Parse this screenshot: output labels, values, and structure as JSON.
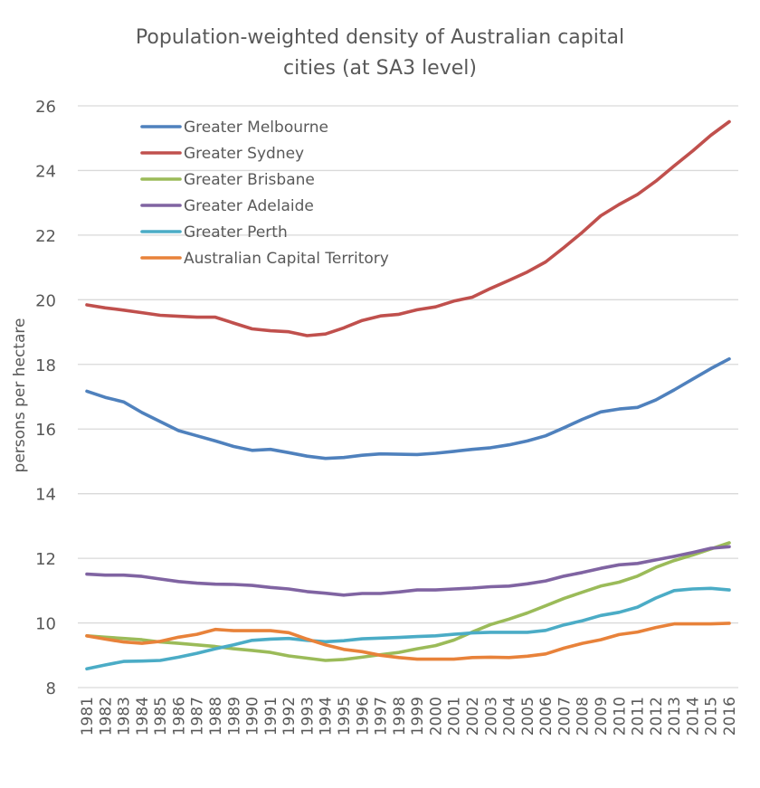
{
  "chart_data": {
    "type": "line",
    "title_lines": [
      "Population-weighted density of Australian capital",
      "cities (at SA3 level)"
    ],
    "xlabel": "",
    "ylabel": "persons per hectare",
    "ylim": [
      8,
      26
    ],
    "yticks": [
      8,
      10,
      12,
      14,
      16,
      18,
      20,
      22,
      24,
      26
    ],
    "grid": true,
    "legend_position": "top-left",
    "x": [
      "1981",
      "1982",
      "1983",
      "1984",
      "1985",
      "1986",
      "1987",
      "1988",
      "1989",
      "1990",
      "1991",
      "1992",
      "1993",
      "1994",
      "1995",
      "1996",
      "1997",
      "1998",
      "1999",
      "2000",
      "2001",
      "2002",
      "2003",
      "2004",
      "2005",
      "2006",
      "2007",
      "2008",
      "2009",
      "2010",
      "2011",
      "2012",
      "2013",
      "2014",
      "2015",
      "2016"
    ],
    "series": [
      {
        "name": "Greater Melbourne",
        "color": "#4F81BD",
        "values": [
          17.17,
          16.98,
          16.84,
          16.51,
          16.23,
          15.95,
          15.79,
          15.63,
          15.46,
          15.34,
          15.37,
          15.27,
          15.16,
          15.09,
          15.12,
          15.19,
          15.23,
          15.22,
          15.21,
          15.25,
          15.31,
          15.37,
          15.42,
          15.51,
          15.63,
          15.79,
          16.04,
          16.3,
          16.53,
          16.62,
          16.67,
          16.9,
          17.21,
          17.54,
          17.87,
          18.17
        ]
      },
      {
        "name": "Greater Sydney",
        "color": "#C0504D",
        "values": [
          19.84,
          19.75,
          19.68,
          19.6,
          19.52,
          19.49,
          19.46,
          19.46,
          19.28,
          19.1,
          19.04,
          19.01,
          18.89,
          18.94,
          19.13,
          19.36,
          19.5,
          19.55,
          19.69,
          19.78,
          19.96,
          20.08,
          20.35,
          20.6,
          20.86,
          21.17,
          21.62,
          22.09,
          22.6,
          22.95,
          23.26,
          23.67,
          24.14,
          24.6,
          25.09,
          25.51
        ]
      },
      {
        "name": "Greater Brisbane",
        "color": "#9BBB59",
        "values": [
          9.6,
          9.56,
          9.52,
          9.48,
          9.41,
          9.37,
          9.32,
          9.27,
          9.2,
          9.15,
          9.09,
          8.98,
          8.91,
          8.84,
          8.87,
          8.94,
          9.02,
          9.09,
          9.2,
          9.3,
          9.47,
          9.72,
          9.95,
          10.12,
          10.31,
          10.53,
          10.76,
          10.95,
          11.14,
          11.26,
          11.45,
          11.72,
          11.93,
          12.1,
          12.29,
          12.48
        ]
      },
      {
        "name": "Greater Adelaide",
        "color": "#8064A2",
        "values": [
          11.51,
          11.48,
          11.48,
          11.44,
          11.36,
          11.28,
          11.23,
          11.2,
          11.19,
          11.16,
          11.1,
          11.05,
          10.97,
          10.92,
          10.86,
          10.91,
          10.91,
          10.96,
          11.02,
          11.02,
          11.05,
          11.08,
          11.12,
          11.14,
          11.21,
          11.3,
          11.45,
          11.56,
          11.69,
          11.8,
          11.84,
          11.95,
          12.06,
          12.18,
          12.31,
          12.36
        ]
      },
      {
        "name": "Greater Perth",
        "color": "#4BACC6",
        "values": [
          8.58,
          8.7,
          8.81,
          8.82,
          8.84,
          8.94,
          9.06,
          9.2,
          9.32,
          9.46,
          9.5,
          9.52,
          9.46,
          9.42,
          9.45,
          9.51,
          9.53,
          9.55,
          9.58,
          9.6,
          9.65,
          9.69,
          9.71,
          9.71,
          9.71,
          9.77,
          9.94,
          10.07,
          10.23,
          10.33,
          10.49,
          10.77,
          11.0,
          11.05,
          11.07,
          11.02
        ]
      },
      {
        "name": "Australian Capital Territory",
        "color": "#E8823A",
        "values": [
          9.6,
          9.5,
          9.41,
          9.37,
          9.43,
          9.56,
          9.65,
          9.8,
          9.76,
          9.76,
          9.76,
          9.7,
          9.5,
          9.32,
          9.18,
          9.11,
          9.0,
          8.93,
          8.88,
          8.88,
          8.88,
          8.93,
          8.94,
          8.93,
          8.97,
          9.04,
          9.22,
          9.37,
          9.48,
          9.64,
          9.72,
          9.86,
          9.97,
          9.97,
          9.97,
          9.99
        ]
      }
    ]
  }
}
